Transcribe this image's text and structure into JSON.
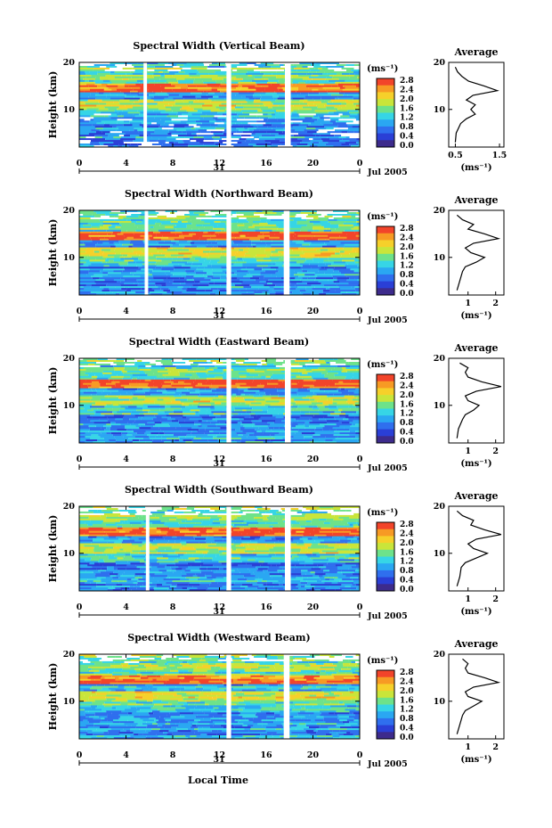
{
  "x_axis_label": "Local Time",
  "date_label": "Jul 2005",
  "day_label": "31",
  "colorbar_unit": "(ms⁻¹)",
  "colorbar_ticks": [
    "0.0",
    "0.4",
    "0.8",
    "1.2",
    "1.6",
    "2.0",
    "2.4",
    "2.8"
  ],
  "colorbar_colors": [
    "#3d2b8c",
    "#2a3fd6",
    "#2f6fee",
    "#2aa7f2",
    "#36d5e6",
    "#6de28a",
    "#c9e53a",
    "#f6d02a",
    "#f79a24",
    "#f2442a"
  ],
  "chart_data": [
    {
      "type": "heatmap",
      "title": "Spectral Width (Vertical Beam)",
      "ylabel": "Height (km)",
      "x_ticks": [
        "0",
        "4",
        "8",
        "12",
        "16",
        "20",
        "0"
      ],
      "y_ticks": [
        "20",
        "10"
      ],
      "xlim": [
        0,
        24
      ],
      "ylim": [
        2,
        20
      ],
      "gaps_hours": [
        [
          5.5,
          5.8
        ],
        [
          12.6,
          13.0
        ],
        [
          17.6,
          18.1
        ]
      ],
      "profile": {
        "title": "Average",
        "xlabel": "(ms⁻¹)",
        "x_ticks": [
          "0.5",
          "1.5"
        ],
        "xlim": [
          0.35,
          1.6
        ],
        "heights_km": [
          3,
          5,
          7,
          8,
          9,
          10,
          11,
          12,
          13,
          14,
          15,
          16,
          17,
          18,
          19
        ],
        "values": [
          0.5,
          0.52,
          0.62,
          0.75,
          0.95,
          0.85,
          0.95,
          0.75,
          0.9,
          1.45,
          1.15,
          0.8,
          0.65,
          0.55,
          0.5
        ]
      }
    },
    {
      "type": "heatmap",
      "title": "Spectral Width (Northward Beam)",
      "ylabel": "Height (km)",
      "x_ticks": [
        "0",
        "4",
        "8",
        "12",
        "16",
        "20",
        "0"
      ],
      "y_ticks": [
        "20",
        "10"
      ],
      "xlim": [
        0,
        24
      ],
      "ylim": [
        2,
        20
      ],
      "gaps_hours": [
        [
          5.6,
          5.9
        ],
        [
          12.6,
          13.0
        ],
        [
          17.5,
          18.0
        ]
      ],
      "profile": {
        "title": "Average",
        "xlabel": "(ms⁻¹)",
        "x_ticks": [
          "1",
          "2"
        ],
        "xlim": [
          0.3,
          2.3
        ],
        "heights_km": [
          3,
          5,
          7,
          8,
          9,
          10,
          11,
          12,
          13,
          14,
          15,
          16,
          17,
          18,
          19
        ],
        "values": [
          0.6,
          0.7,
          0.8,
          0.9,
          1.3,
          1.6,
          1.1,
          0.9,
          1.2,
          2.1,
          1.6,
          1.0,
          1.2,
          0.8,
          0.6
        ]
      }
    },
    {
      "type": "heatmap",
      "title": "Spectral Width (Eastward Beam)",
      "ylabel": "Height (km)",
      "x_ticks": [
        "0",
        "4",
        "8",
        "12",
        "16",
        "20",
        "0"
      ],
      "y_ticks": [
        "20",
        "10"
      ],
      "xlim": [
        0,
        24
      ],
      "ylim": [
        2,
        20
      ],
      "gaps_hours": [
        [
          12.6,
          13.0
        ],
        [
          17.6,
          18.1
        ]
      ],
      "profile": {
        "title": "Average",
        "xlabel": "(ms⁻¹)",
        "x_ticks": [
          "1",
          "2"
        ],
        "xlim": [
          0.3,
          2.3
        ],
        "heights_km": [
          3,
          5,
          7,
          8,
          9,
          10,
          11,
          12,
          13,
          14,
          15,
          16,
          17,
          18,
          19
        ],
        "values": [
          0.6,
          0.65,
          0.8,
          0.9,
          1.2,
          1.4,
          1.0,
          0.9,
          1.3,
          2.2,
          1.5,
          1.0,
          0.9,
          1.0,
          0.7
        ]
      }
    },
    {
      "type": "heatmap",
      "title": "Spectral Width (Southward Beam)",
      "ylabel": "Height (km)",
      "x_ticks": [
        "0",
        "4",
        "8",
        "12",
        "16",
        "20",
        "0"
      ],
      "y_ticks": [
        "20",
        "10"
      ],
      "xlim": [
        0,
        24
      ],
      "ylim": [
        2,
        20
      ],
      "gaps_hours": [
        [
          5.7,
          6.0
        ],
        [
          12.6,
          13.0
        ],
        [
          17.6,
          18.1
        ]
      ],
      "profile": {
        "title": "Average",
        "xlabel": "(ms⁻¹)",
        "x_ticks": [
          "1",
          "2"
        ],
        "xlim": [
          0.3,
          2.3
        ],
        "heights_km": [
          3,
          5,
          7,
          8,
          9,
          10,
          11,
          12,
          13,
          14,
          15,
          16,
          17,
          18,
          19
        ],
        "values": [
          0.6,
          0.7,
          0.75,
          0.9,
          1.3,
          1.7,
          1.2,
          1.0,
          1.3,
          2.2,
          1.6,
          1.1,
          1.2,
          0.8,
          0.6
        ]
      }
    },
    {
      "type": "heatmap",
      "title": "Spectral Width (Westward Beam)",
      "ylabel": "Height (km)",
      "x_ticks": [
        "0",
        "4",
        "8",
        "12",
        "16",
        "20",
        "0"
      ],
      "y_ticks": [
        "20",
        "10"
      ],
      "xlim": [
        0,
        24
      ],
      "ylim": [
        2,
        20
      ],
      "gaps_hours": [
        [
          12.6,
          13.0
        ],
        [
          17.5,
          18.0
        ]
      ],
      "profile": {
        "title": "Average",
        "xlabel": "(ms⁻¹)",
        "x_ticks": [
          "1",
          "2"
        ],
        "xlim": [
          0.3,
          2.3
        ],
        "heights_km": [
          3,
          5,
          7,
          8,
          9,
          10,
          11,
          12,
          13,
          14,
          15,
          16,
          17,
          18,
          19
        ],
        "values": [
          0.6,
          0.7,
          0.8,
          0.9,
          1.2,
          1.5,
          1.0,
          0.9,
          1.2,
          2.1,
          1.6,
          1.0,
          0.9,
          1.0,
          0.8
        ]
      }
    }
  ]
}
